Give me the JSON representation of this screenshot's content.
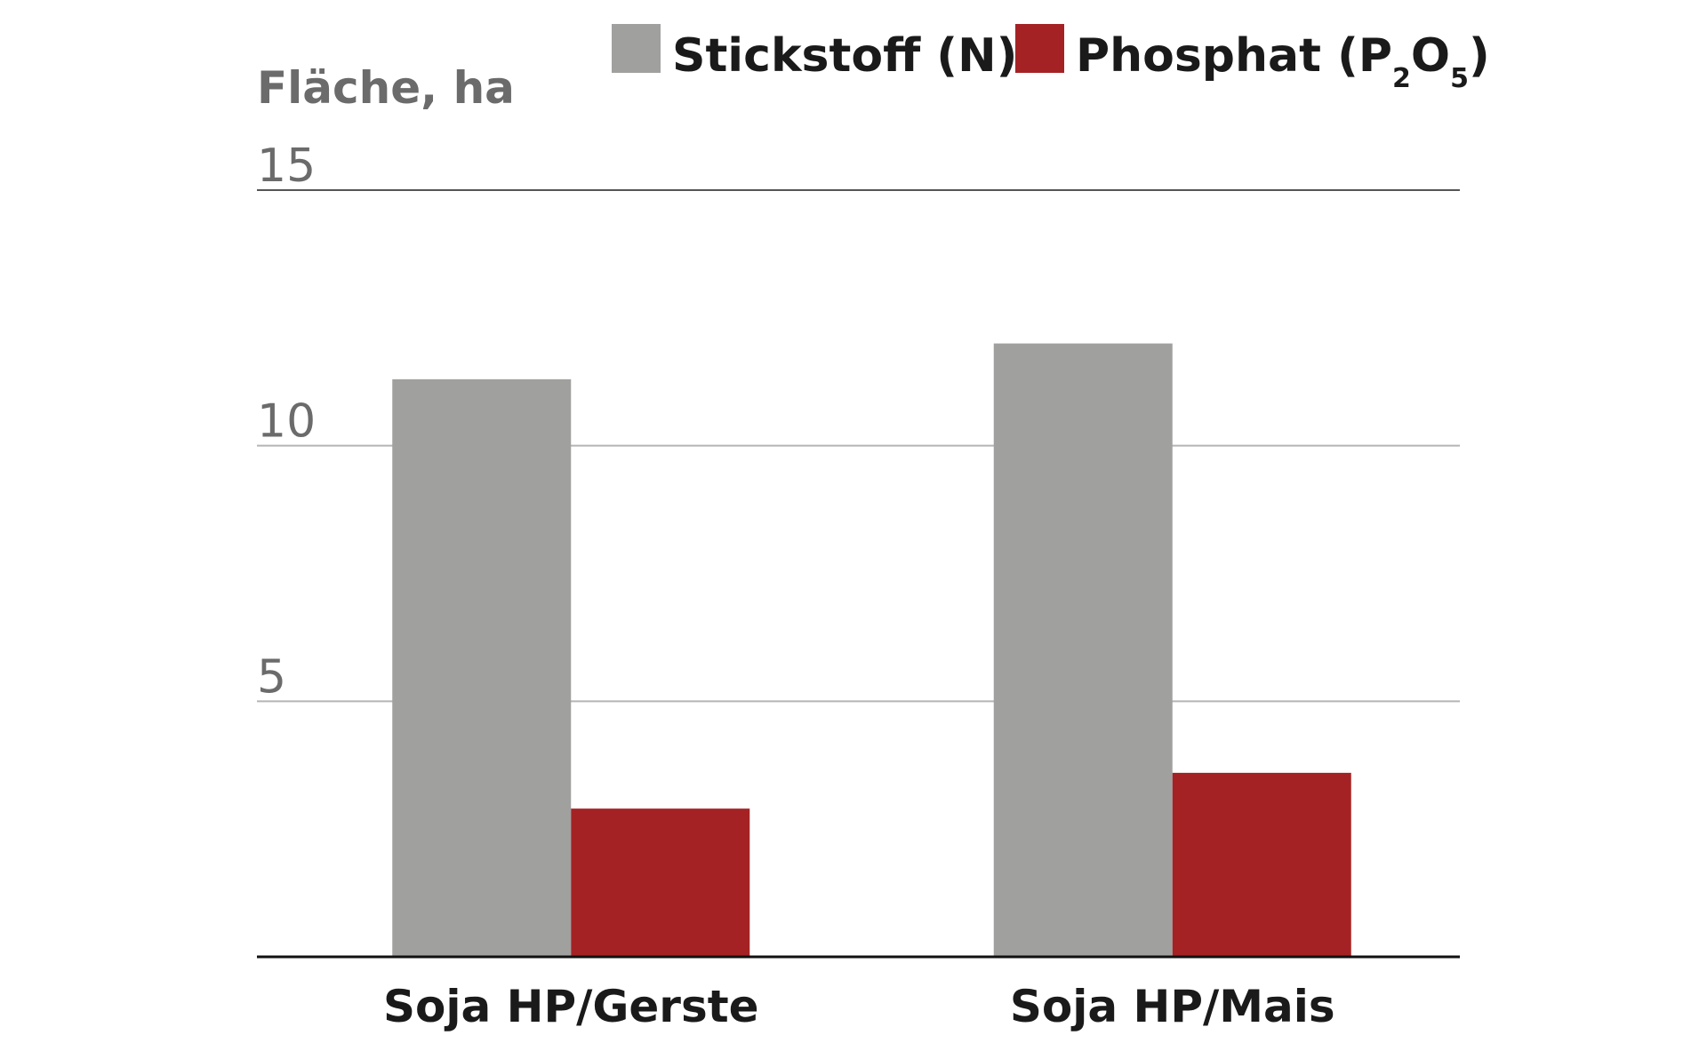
{
  "chart_data": {
    "type": "bar",
    "ylabel": "Fläche, ha",
    "ylim": [
      0,
      15
    ],
    "yticks": [
      5,
      10,
      15
    ],
    "categories": [
      "Soja HP/Gerste",
      "Soja HP/Mais"
    ],
    "series": [
      {
        "name": "Stickstoff (N)",
        "legend_parts": [
          "Stickstoff (N)"
        ],
        "values": [
          11.3,
          12.0
        ],
        "color": "#a0a09f"
      },
      {
        "name": "Phosphat (P2O5)",
        "legend_parts": [
          "Phosphat (P",
          "2",
          "O",
          "5",
          ")"
        ],
        "values": [
          2.9,
          3.6
        ],
        "color": "#a42224"
      }
    ],
    "grid": true,
    "legend_position": "top-right"
  }
}
